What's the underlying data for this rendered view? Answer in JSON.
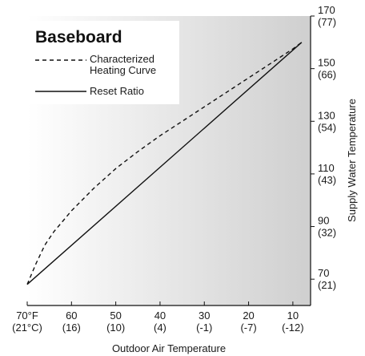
{
  "chart_data": {
    "type": "line",
    "title": "Baseboard",
    "xlabel": "Outdoor Air Temperature",
    "ylabel": "Supply Water Temperature",
    "x_scale": "reversed",
    "xlim": [
      70,
      6
    ],
    "ylim": [
      60,
      170
    ],
    "x_ticks": [
      {
        "value": 70,
        "label": "70°F",
        "sublabel": "(21°C)"
      },
      {
        "value": 60,
        "label": "60",
        "sublabel": "(16)"
      },
      {
        "value": 50,
        "label": "50",
        "sublabel": "(10)"
      },
      {
        "value": 40,
        "label": "40",
        "sublabel": "(4)"
      },
      {
        "value": 30,
        "label": "30",
        "sublabel": "(-1)"
      },
      {
        "value": 20,
        "label": "20",
        "sublabel": "(-7)"
      },
      {
        "value": 10,
        "label": "10",
        "sublabel": "(-12)"
      }
    ],
    "y_ticks": [
      {
        "value": 70,
        "label": "70",
        "sublabel": "(21)"
      },
      {
        "value": 90,
        "label": "90",
        "sublabel": "(32)"
      },
      {
        "value": 110,
        "label": "110",
        "sublabel": "(43)"
      },
      {
        "value": 130,
        "label": "130",
        "sublabel": "(54)"
      },
      {
        "value": 150,
        "label": "150",
        "sublabel": "(66)"
      },
      {
        "value": 170,
        "label": "170",
        "sublabel": "(77)"
      }
    ],
    "legend": {
      "position": "top-left",
      "entries": [
        {
          "label_lines": [
            "Characterized",
            "Heating Curve"
          ],
          "style": "dashed"
        },
        {
          "label_lines": [
            "Reset Ratio"
          ],
          "style": "solid"
        }
      ]
    },
    "grid": false,
    "background": "gradient white to light gray",
    "series": [
      {
        "label": "Characterized Heating Curve",
        "style": "dashed",
        "color": "#111111",
        "points": [
          [
            70,
            68
          ],
          [
            68,
            76
          ],
          [
            66,
            83
          ],
          [
            64,
            88
          ],
          [
            62,
            92
          ],
          [
            60,
            96
          ],
          [
            55,
            104.5
          ],
          [
            50,
            112
          ],
          [
            45,
            118.5
          ],
          [
            40,
            124.5
          ],
          [
            35,
            130
          ],
          [
            30,
            135.5
          ],
          [
            25,
            141
          ],
          [
            20,
            146.5
          ],
          [
            15,
            152
          ],
          [
            10,
            157.5
          ],
          [
            8,
            160
          ]
        ]
      },
      {
        "label": "Reset Ratio",
        "style": "solid",
        "color": "#111111",
        "points": [
          [
            70,
            68
          ],
          [
            8,
            160
          ]
        ]
      }
    ]
  }
}
